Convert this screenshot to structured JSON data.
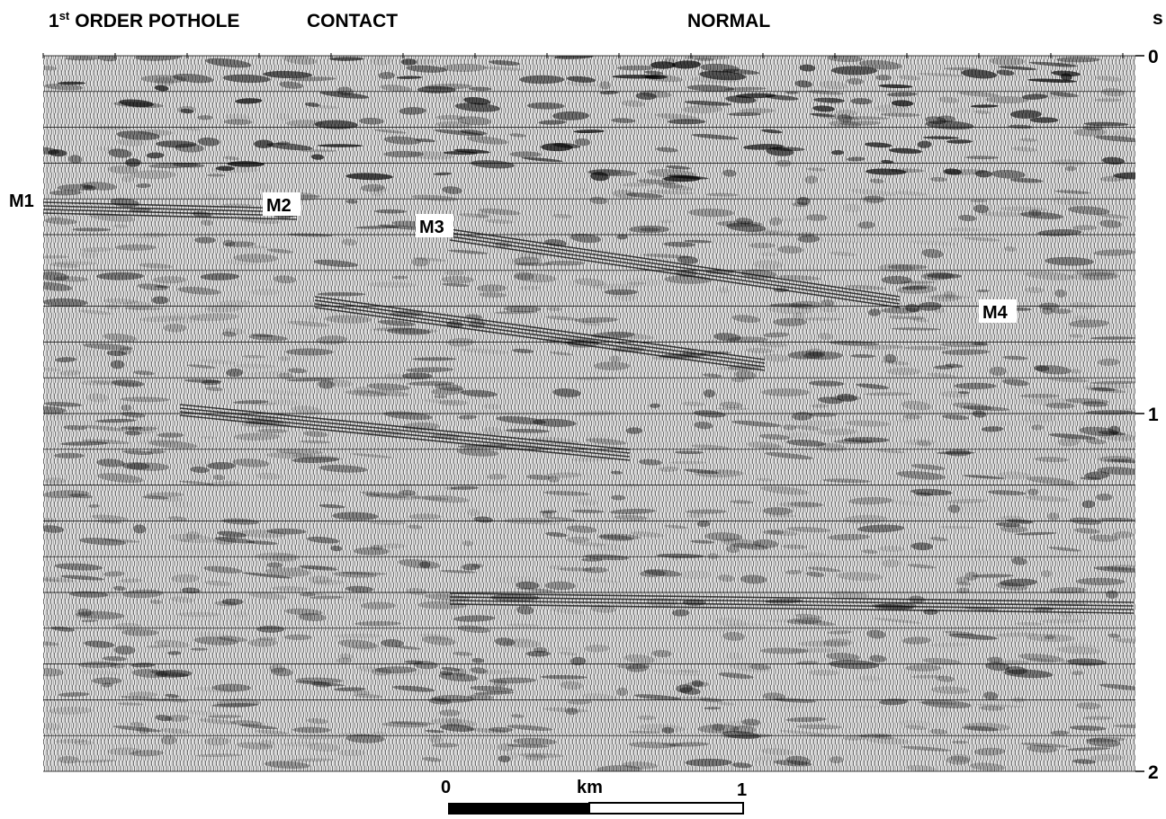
{
  "header": {
    "pothole": {
      "number": "1",
      "superscript": "st",
      "rest": "ORDER POTHOLE"
    },
    "contact": "CONTACT",
    "normal": "NORMAL"
  },
  "time_axis": {
    "unit": "s",
    "ticks": [
      0,
      1,
      2
    ]
  },
  "markers": [
    "M1",
    "M2",
    "M3",
    "M4"
  ],
  "scale_bar": {
    "start": "0",
    "unit": "km",
    "end": "1"
  }
}
